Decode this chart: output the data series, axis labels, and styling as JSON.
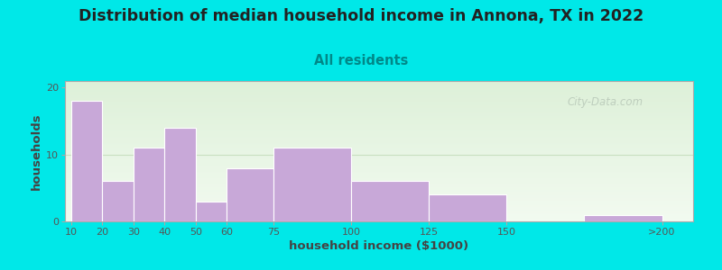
{
  "title": "Distribution of median household income in Annona, TX in 2022",
  "subtitle": "All residents",
  "xlabel": "household income ($1000)",
  "ylabel": "households",
  "bar_left_edges": [
    10,
    20,
    30,
    40,
    50,
    60,
    75,
    100,
    125,
    175
  ],
  "bar_widths": [
    10,
    10,
    10,
    10,
    10,
    15,
    25,
    25,
    25,
    25
  ],
  "bar_heights": [
    18,
    6,
    11,
    14,
    3,
    8,
    11,
    6,
    4,
    1
  ],
  "bar_color": "#c8a8d8",
  "bar_edgecolor": "#ffffff",
  "xtick_positions": [
    10,
    20,
    30,
    40,
    50,
    60,
    75,
    100,
    125,
    150,
    200
  ],
  "xtick_labels": [
    "10",
    "20",
    "30",
    "40",
    "50",
    "60",
    "75",
    "100",
    "125",
    "150",
    ">200"
  ],
  "ytick_positions": [
    0,
    10,
    20
  ],
  "ytick_labels": [
    "0",
    "10",
    "20"
  ],
  "ylim": [
    0,
    21
  ],
  "xlim": [
    8,
    210
  ],
  "background_outer": "#00e8e8",
  "bg_grad_top": "#ddf0d8",
  "bg_grad_bot": "#f2faf0",
  "title_fontsize": 12.5,
  "subtitle_fontsize": 10.5,
  "subtitle_color": "#008888",
  "title_color": "#222222",
  "axis_label_color": "#444444",
  "tick_label_color": "#555555",
  "watermark_text": "City-Data.com",
  "watermark_color": "#b8c8b8",
  "grid_color": "#c8e0c0",
  "title_fontweight": "bold"
}
